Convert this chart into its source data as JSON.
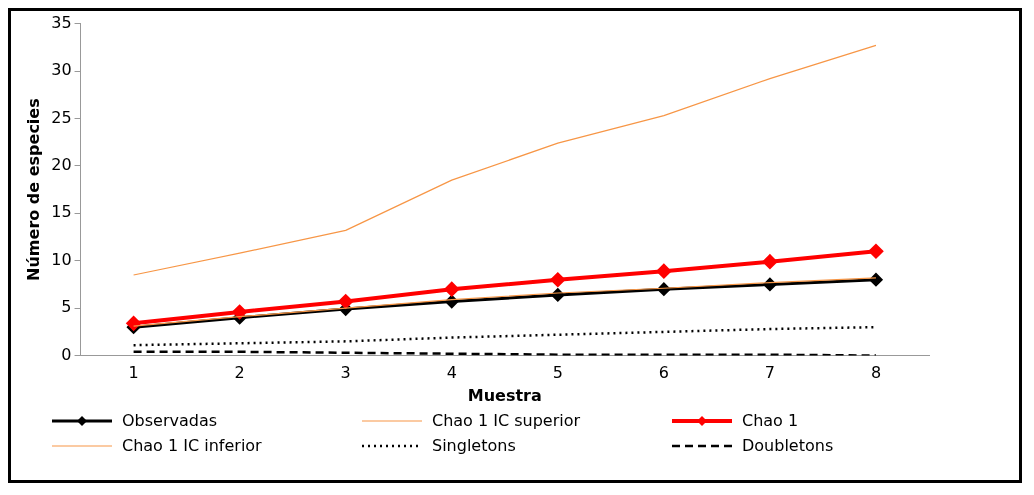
{
  "chart_data": {
    "type": "line",
    "xlabel": "Muestra",
    "ylabel": "Número de especies",
    "categories": [
      "1",
      "2",
      "3",
      "4",
      "5",
      "6",
      "7",
      "8"
    ],
    "ylim": [
      0,
      35
    ],
    "yticks": [
      0,
      5,
      10,
      15,
      20,
      25,
      30,
      35
    ],
    "grid": false,
    "legend": "bottom",
    "series": [
      {
        "name": "Observadas",
        "color": "#000000",
        "marker": "diamond",
        "line_style": "solid",
        "values": [
          3,
          4,
          4.9,
          5.7,
          6.4,
          7,
          7.5,
          8
        ]
      },
      {
        "name": "Chao 1 IC superior",
        "color": "#f79646",
        "marker": "none",
        "line_style": "solid",
        "values": [
          8.5,
          10.8,
          13.2,
          18.5,
          22.4,
          25.3,
          29.2,
          32.7
        ]
      },
      {
        "name": "Chao 1",
        "color": "#ff0000",
        "marker": "diamond",
        "line_style": "solid",
        "values": [
          3.4,
          4.6,
          5.7,
          7,
          8,
          8.9,
          9.9,
          11
        ]
      },
      {
        "name": "Chao 1 IC inferior",
        "color": "#f79646",
        "marker": "none",
        "line_style": "solid",
        "values": [
          3.1,
          4.1,
          5,
          5.9,
          6.6,
          7.1,
          7.7,
          8.2
        ]
      },
      {
        "name": "Singletons",
        "color": "#000000",
        "marker": "none",
        "line_style": "dotted",
        "values": [
          1.1,
          1.3,
          1.5,
          1.9,
          2.2,
          2.5,
          2.8,
          3
        ]
      },
      {
        "name": "Doubletons",
        "color": "#000000",
        "marker": "none",
        "line_style": "dashed",
        "values": [
          0.4,
          0.4,
          0.3,
          0.2,
          0.1,
          0.1,
          0.1,
          0
        ]
      }
    ]
  }
}
